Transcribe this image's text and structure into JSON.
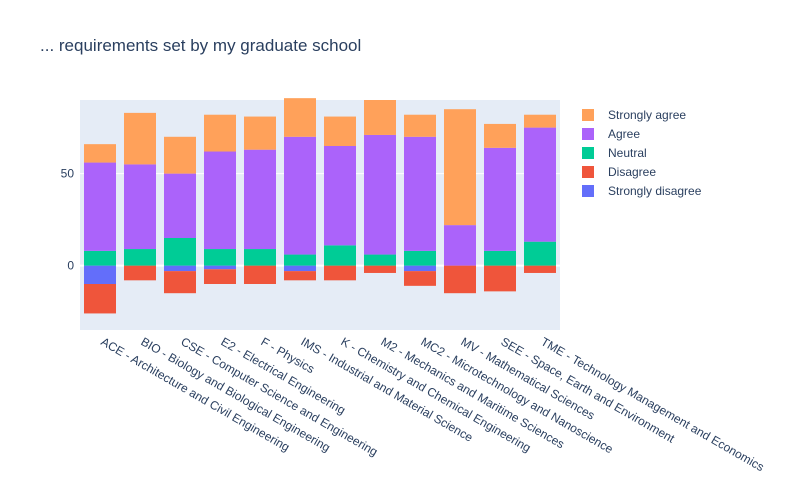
{
  "chart_data": {
    "type": "bar",
    "barmode": "relative",
    "title": "... requirements set by my graduate school",
    "xlabel": "",
    "ylabel": "",
    "ylim": [
      -35,
      90
    ],
    "yticks": [
      0,
      50
    ],
    "grid": true,
    "legend_position": "right",
    "categories": [
      "ACE - Architecture and Civil Engineering",
      "BIO - Biology and Biological Engineering",
      "CSE - Computer Science and Engineering",
      "E2 - Electrical Engineering",
      "F - Physics",
      "IMS - Industrial and Material Science",
      "K - Chemistry and Chemical Engineering",
      "M2 - Mechanics and Maritime Sciences",
      "MC2 - Microtechnology and Nanoscience",
      "MV - Mathematical Sciences",
      "SEE - Space, Earth and Environment",
      "TME - Technology Management and Economics"
    ],
    "series": [
      {
        "name": "Strongly disagree",
        "color": "#636efa",
        "values": [
          -10,
          0,
          -3,
          -2,
          0,
          -3,
          0,
          0,
          -3,
          0,
          0,
          0
        ]
      },
      {
        "name": "Disagree",
        "color": "#ef553b",
        "values": [
          -16,
          -8,
          -12,
          -8,
          -10,
          -5,
          -8,
          -4,
          -8,
          -15,
          -14,
          -4
        ]
      },
      {
        "name": "Neutral",
        "color": "#00cc96",
        "values": [
          8,
          9,
          15,
          9,
          9,
          6,
          11,
          6,
          8,
          0,
          8,
          13
        ]
      },
      {
        "name": "Agree",
        "color": "#ab63fa",
        "values": [
          48,
          46,
          35,
          53,
          54,
          64,
          54,
          65,
          62,
          22,
          56,
          62
        ]
      },
      {
        "name": "Strongly agree",
        "color": "#ffa15a",
        "values": [
          10,
          28,
          20,
          20,
          18,
          21,
          16,
          19,
          12,
          63,
          13,
          7
        ]
      }
    ]
  }
}
